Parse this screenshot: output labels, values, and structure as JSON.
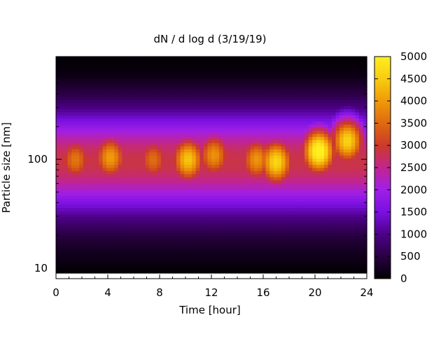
{
  "chart_data": {
    "type": "heatmap",
    "title": "dN / d log d (3/19/19)",
    "xlabel": "Time [hour]",
    "ylabel": "Particle size [nm]",
    "x_ticks": [
      0,
      4,
      8,
      12,
      16,
      20,
      24
    ],
    "xlim": [
      0,
      24
    ],
    "y_scale": "log",
    "ylim": [
      8,
      880
    ],
    "y_ticks": [
      10,
      100
    ],
    "colorbar": {
      "ticks": [
        0,
        500,
        1000,
        1500,
        2000,
        2500,
        3000,
        3500,
        4000,
        4500,
        5000
      ],
      "range": [
        0,
        5000
      ],
      "colors": [
        "#000000",
        "#2a0044",
        "#4d0088",
        "#7a10e0",
        "#a01fe8",
        "#c2258e",
        "#cc3a2a",
        "#de6a10",
        "#f09a0a",
        "#f8cc10",
        "#ffee20"
      ]
    },
    "mode_diameter_nm": 100,
    "hotspots": [
      {
        "hour": 1.5,
        "diameter_nm": 100,
        "value": 3000
      },
      {
        "hour": 4.2,
        "diameter_nm": 105,
        "value": 3400
      },
      {
        "hour": 7.5,
        "diameter_nm": 100,
        "value": 2900
      },
      {
        "hour": 10.2,
        "diameter_nm": 100,
        "value": 3800
      },
      {
        "hour": 12.2,
        "diameter_nm": 110,
        "value": 3300
      },
      {
        "hour": 15.5,
        "diameter_nm": 100,
        "value": 3300
      },
      {
        "hour": 17.0,
        "diameter_nm": 95,
        "value": 4000
      },
      {
        "hour": 20.3,
        "diameter_nm": 120,
        "value": 4600
      },
      {
        "hour": 22.5,
        "diameter_nm": 150,
        "value": 4100
      }
    ]
  }
}
